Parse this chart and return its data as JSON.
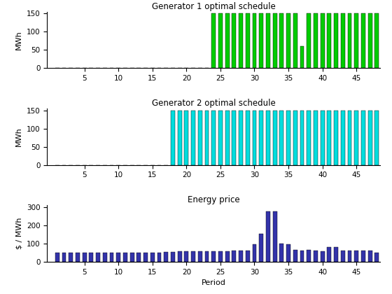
{
  "periods": 48,
  "gen1_values": [
    0,
    0,
    0,
    0,
    0,
    0,
    0,
    0,
    0,
    0,
    0,
    0,
    0,
    0,
    0,
    0,
    0,
    0,
    0,
    0,
    0,
    0,
    0,
    150,
    150,
    150,
    150,
    150,
    150,
    150,
    150,
    150,
    150,
    150,
    150,
    150,
    60,
    150,
    150,
    150,
    150,
    150,
    150,
    150,
    150,
    150,
    150,
    150
  ],
  "gen2_values": [
    0,
    0,
    0,
    0,
    0,
    0,
    0,
    0,
    0,
    0,
    0,
    0,
    0,
    0,
    0,
    0,
    0,
    150,
    150,
    150,
    150,
    150,
    150,
    150,
    150,
    150,
    150,
    150,
    150,
    150,
    150,
    150,
    150,
    150,
    150,
    150,
    150,
    150,
    150,
    150,
    150,
    150,
    150,
    150,
    150,
    150,
    150,
    150
  ],
  "price_values": [
    50,
    50,
    50,
    48,
    50,
    50,
    48,
    48,
    50,
    50,
    50,
    50,
    50,
    48,
    50,
    50,
    55,
    55,
    58,
    58,
    58,
    58,
    58,
    58,
    58,
    58,
    60,
    60,
    62,
    95,
    155,
    275,
    275,
    100,
    95,
    65,
    60,
    65,
    60,
    58,
    80,
    80,
    62,
    60,
    60,
    62,
    60,
    50
  ],
  "gen1_color": "#00cc00",
  "gen2_color": "#00dddd",
  "price_color": "#3333aa",
  "gen1_title": "Generator 1 optimal schedule",
  "gen2_title": "Generator 2 optimal schedule",
  "price_title": "Energy price",
  "ylabel_mwh": "MWh",
  "ylabel_price": "$ / MWh",
  "xlabel": "Period",
  "gen1_ylim": [
    0,
    155
  ],
  "gen2_ylim": [
    0,
    155
  ],
  "price_ylim": [
    0,
    310
  ],
  "gen1_yticks": [
    0,
    50,
    100,
    150
  ],
  "gen2_yticks": [
    0,
    50,
    100,
    150
  ],
  "price_yticks": [
    0,
    100,
    200,
    300
  ],
  "xticks": [
    5,
    10,
    15,
    20,
    25,
    30,
    35,
    40,
    45
  ],
  "xlim": [
    -0.5,
    48.5
  ]
}
